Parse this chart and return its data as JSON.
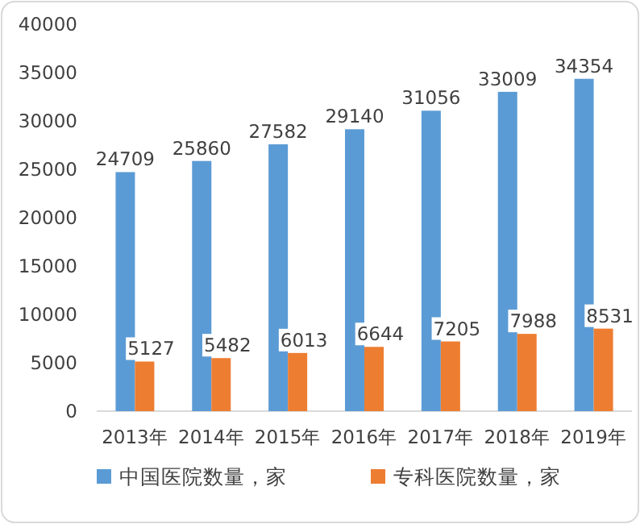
{
  "chart_data": {
    "type": "bar",
    "categories": [
      "2013年",
      "2014年",
      "2015年",
      "2016年",
      "2017年",
      "2018年",
      "2019年"
    ],
    "series": [
      {
        "name": "中国医院数量，家",
        "color": "#5b9bd5",
        "values": [
          24709,
          25860,
          27582,
          29140,
          31056,
          33009,
          34354
        ]
      },
      {
        "name": "专科医院数量，家",
        "color": "#ed7d31",
        "values": [
          5127,
          5482,
          6013,
          6644,
          7205,
          7988,
          8531
        ]
      }
    ],
    "ylim": [
      0,
      40000
    ],
    "yticks": [
      0,
      5000,
      10000,
      15000,
      20000,
      25000,
      30000,
      35000,
      40000
    ],
    "data_labels": true,
    "legend": "bottom"
  }
}
